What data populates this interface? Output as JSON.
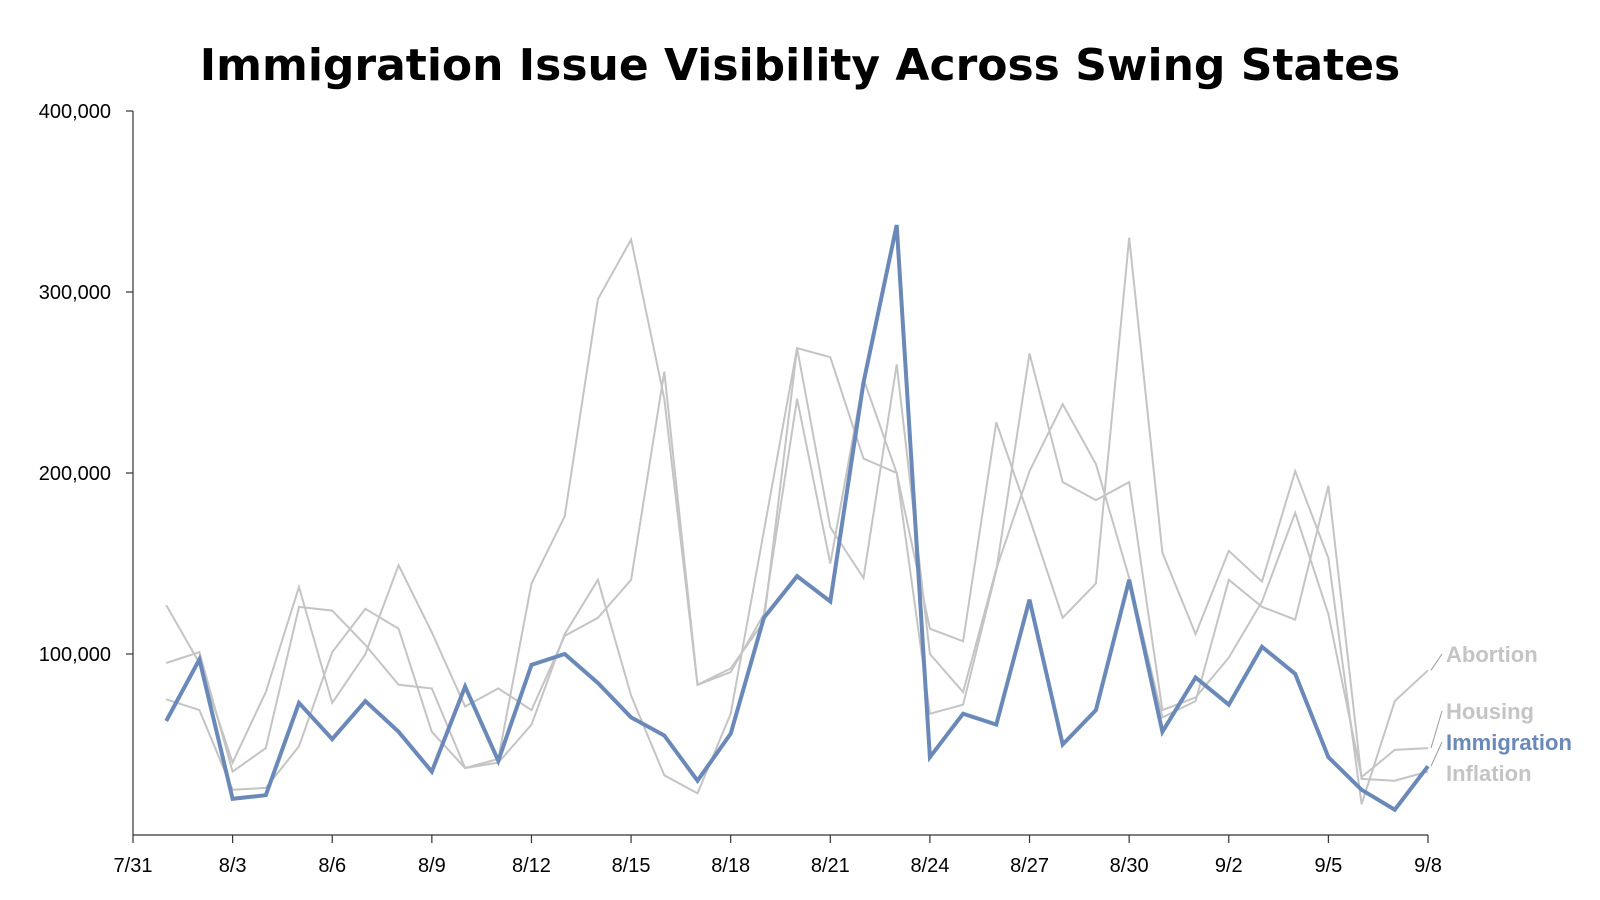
{
  "chart_data": {
    "type": "line",
    "title": "Immigration Issue Visibility Across Swing States",
    "xlabel": "",
    "ylabel": "",
    "ylim": [
      0,
      400000
    ],
    "yticks": [
      100000,
      200000,
      300000,
      400000
    ],
    "ytick_labels": [
      "100,000",
      "200,000",
      "300,000",
      "400,000"
    ],
    "x_range": [
      0,
      39
    ],
    "xticks": [
      0,
      3,
      6,
      9,
      12,
      15,
      18,
      21,
      24,
      27,
      30,
      33,
      36,
      39
    ],
    "xtick_labels": [
      "7/31",
      "8/3",
      "8/6",
      "8/9",
      "8/12",
      "8/15",
      "8/18",
      "8/21",
      "8/24",
      "8/27",
      "8/30",
      "9/2",
      "9/5",
      "9/8"
    ],
    "x": [
      1,
      2,
      3,
      4,
      5,
      6,
      7,
      8,
      9,
      10,
      11,
      12,
      13,
      14,
      15,
      16,
      17,
      18,
      19,
      20,
      21,
      22,
      23,
      24,
      25,
      26,
      27,
      28,
      29,
      30,
      31,
      32,
      33,
      34,
      35,
      36,
      37,
      38,
      39
    ],
    "grid": false,
    "legend": "right, labels at line ends",
    "series": [
      {
        "name": "Immigration",
        "color": "#6a89b8",
        "highlight": true,
        "values": [
          63000,
          97000,
          20000,
          22000,
          73000,
          53000,
          74000,
          57000,
          35000,
          82000,
          41000,
          94000,
          100000,
          84000,
          65000,
          55000,
          30000,
          56000,
          120000,
          143000,
          129000,
          250000,
          337000,
          43000,
          67000,
          61000,
          130000,
          50000,
          69000,
          141000,
          57000,
          87000,
          72000,
          104000,
          89000,
          43000,
          25000,
          14000,
          38000
        ]
      },
      {
        "name": "Abortion",
        "color": "#c4c4c4",
        "highlight": false,
        "values": [
          127000,
          95000,
          40000,
          79000,
          137000,
          73000,
          100000,
          149000,
          112000,
          71000,
          81000,
          69000,
          110000,
          120000,
          141000,
          256000,
          83000,
          92000,
          118000,
          269000,
          264000,
          208000,
          200000,
          114000,
          107000,
          228000,
          175000,
          120000,
          139000,
          330000,
          156000,
          111000,
          157000,
          140000,
          201000,
          153000,
          17000,
          74000,
          91000
        ]
      },
      {
        "name": "Housing",
        "color": "#c4c4c4",
        "highlight": false,
        "values": [
          95000,
          101000,
          35000,
          48000,
          126000,
          124000,
          105000,
          83000,
          81000,
          37000,
          42000,
          139000,
          176000,
          296000,
          329000,
          241000,
          83000,
          90000,
          122000,
          241000,
          150000,
          252000,
          200000,
          67000,
          72000,
          146000,
          266000,
          195000,
          185000,
          195000,
          69000,
          76000,
          98000,
          129000,
          178000,
          122000,
          32000,
          47000,
          48000
        ]
      },
      {
        "name": "Inflation",
        "color": "#c4c4c4",
        "highlight": false,
        "values": [
          75000,
          69000,
          25000,
          26000,
          49000,
          101000,
          125000,
          114000,
          57000,
          37000,
          40000,
          61000,
          111000,
          141000,
          77000,
          33000,
          23000,
          67000,
          168000,
          269000,
          170000,
          142000,
          260000,
          100000,
          79000,
          147000,
          201000,
          238000,
          205000,
          142000,
          65000,
          74000,
          141000,
          126000,
          119000,
          193000,
          31000,
          30000,
          35000
        ]
      }
    ],
    "line_end_labels": [
      {
        "series": "Abortion",
        "text": "Abortion",
        "color": "#c4c4c4"
      },
      {
        "series": "Housing",
        "text": "Housing",
        "color": "#c4c4c4"
      },
      {
        "series": "Immigration",
        "text": "Immigration",
        "color": "#6a89b8"
      },
      {
        "series": "Inflation",
        "text": "Inflation",
        "color": "#c4c4c4"
      }
    ]
  }
}
